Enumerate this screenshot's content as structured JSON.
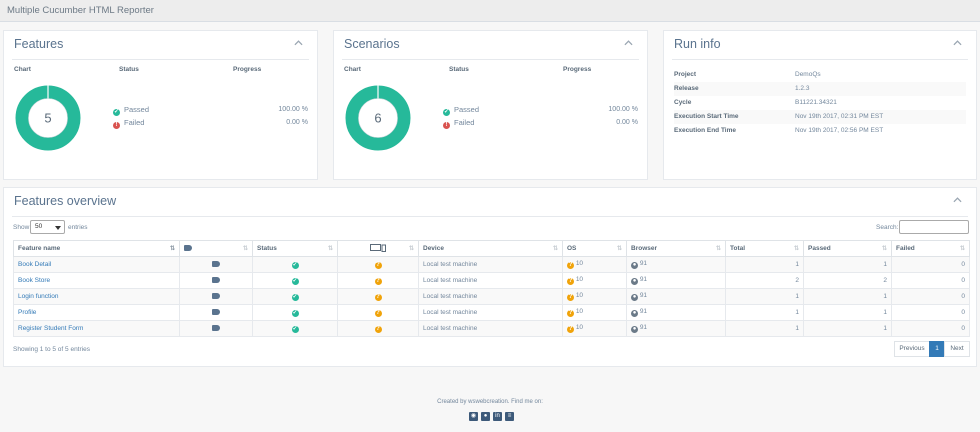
{
  "app": {
    "title": "Multiple Cucumber HTML Reporter"
  },
  "features_panel": {
    "title": "Features",
    "col_chart": "Chart",
    "col_status": "Status",
    "col_progress": "Progress",
    "total": "5",
    "passed_label": "Passed",
    "failed_label": "Failed",
    "passed_pct": "100.00 %",
    "failed_pct": "0.00 %",
    "passed_fraction": 1.0
  },
  "scenarios_panel": {
    "title": "Scenarios",
    "col_chart": "Chart",
    "col_status": "Status",
    "col_progress": "Progress",
    "total": "6",
    "passed_label": "Passed",
    "failed_label": "Failed",
    "passed_pct": "100.00 %",
    "failed_pct": "0.00 %",
    "passed_fraction": 1.0
  },
  "run_info": {
    "title": "Run info",
    "rows": [
      {
        "key": "Project",
        "value": "DemoQs"
      },
      {
        "key": "Release",
        "value": "1.2.3"
      },
      {
        "key": "Cycle",
        "value": "B11221.34321"
      },
      {
        "key": "Execution Start Time",
        "value": "Nov 19th 2017, 02:31 PM EST"
      },
      {
        "key": "Execution End Time",
        "value": "Nov 19th 2017, 02:56 PM EST"
      }
    ]
  },
  "overview": {
    "title": "Features overview",
    "show_label": "Show",
    "entries_value": "50",
    "entries_label": "entries",
    "search_label": "Search:",
    "columns": {
      "feature_name": "Feature name",
      "status": "Status",
      "device": "Device",
      "os": "OS",
      "browser": "Browser",
      "total": "Total",
      "passed": "Passed",
      "failed": "Failed"
    },
    "rows": [
      {
        "name": "Book Detail",
        "device": "Local test machine",
        "os": "10",
        "browser": "91",
        "total": "1",
        "passed": "1",
        "failed": "0"
      },
      {
        "name": "Book Store",
        "device": "Local test machine",
        "os": "10",
        "browser": "91",
        "total": "2",
        "passed": "2",
        "failed": "0"
      },
      {
        "name": "Login function",
        "device": "Local test machine",
        "os": "10",
        "browser": "91",
        "total": "1",
        "passed": "1",
        "failed": "0"
      },
      {
        "name": "Profile",
        "device": "Local test machine",
        "os": "10",
        "browser": "91",
        "total": "1",
        "passed": "1",
        "failed": "0"
      },
      {
        "name": "Register Student Form",
        "device": "Local test machine",
        "os": "10",
        "browser": "91",
        "total": "1",
        "passed": "1",
        "failed": "0"
      }
    ],
    "info_text": "Showing 1 to 5 of 5 entries",
    "pager": {
      "previous": "Previous",
      "current": "1",
      "next": "Next"
    }
  },
  "footer": {
    "text": "Created by wswebcreation. Find me on:"
  },
  "colors": {
    "passed": "#26b99a",
    "failed": "#d9534f",
    "unknown": "#f0a30a",
    "link": "#337ab7"
  }
}
